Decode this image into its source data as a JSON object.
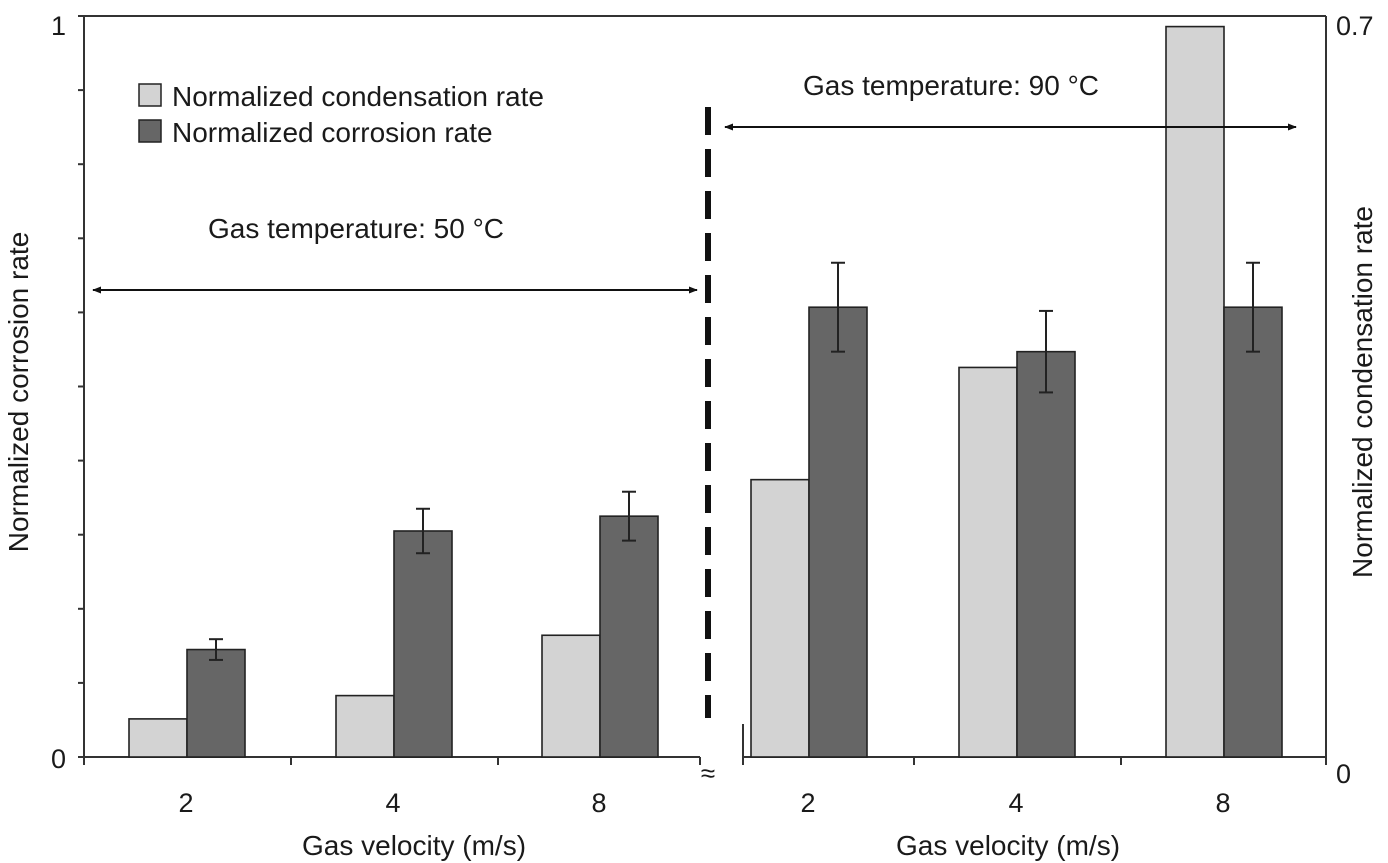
{
  "chart_data": {
    "type": "bar",
    "panels": [
      {
        "name": "Gas temperature: 50 °C",
        "annotation": "Gas temperature: 50 °C",
        "categories": [
          "2",
          "4",
          "8"
        ],
        "series": [
          {
            "name": "Normalized condensation rate",
            "axis": "right",
            "values": [
              0.036,
              0.058,
              0.115
            ]
          },
          {
            "name": "Normalized corrosion rate",
            "axis": "left",
            "values": [
              0.145,
              0.305,
              0.325
            ],
            "errors": [
              0.014,
              0.03,
              0.033
            ]
          }
        ]
      },
      {
        "name": "Gas temperature: 90 °C",
        "annotation": "Gas temperature: 90 °C",
        "categories": [
          "2",
          "4",
          "8"
        ],
        "series": [
          {
            "name": "Normalized condensation rate",
            "axis": "right",
            "values": [
              0.262,
              0.368,
              0.69
            ]
          },
          {
            "name": "Normalized corrosion rate",
            "axis": "left",
            "values": [
              0.607,
              0.547,
              0.607
            ],
            "errors": [
              0.06,
              0.055,
              0.06
            ]
          }
        ]
      }
    ],
    "xlabel": "Gas velocity (m/s)",
    "ylabel_left": "Normalized corrosion rate",
    "ylabel_right": "Normalized condensation rate",
    "ylim_left": [
      0,
      1
    ],
    "ylim_right": [
      0,
      0.7
    ],
    "left_ticks": [
      "0",
      "1"
    ],
    "right_ticks": [
      "0",
      "0.7"
    ],
    "legend": [
      "Normalized condensation rate",
      "Normalized corrosion rate"
    ],
    "legend_position": "top-left",
    "break_symbol": "≈",
    "colors": {
      "condensation": "#d3d3d3",
      "corrosion": "#666666",
      "bar_outline": "#222222"
    }
  }
}
